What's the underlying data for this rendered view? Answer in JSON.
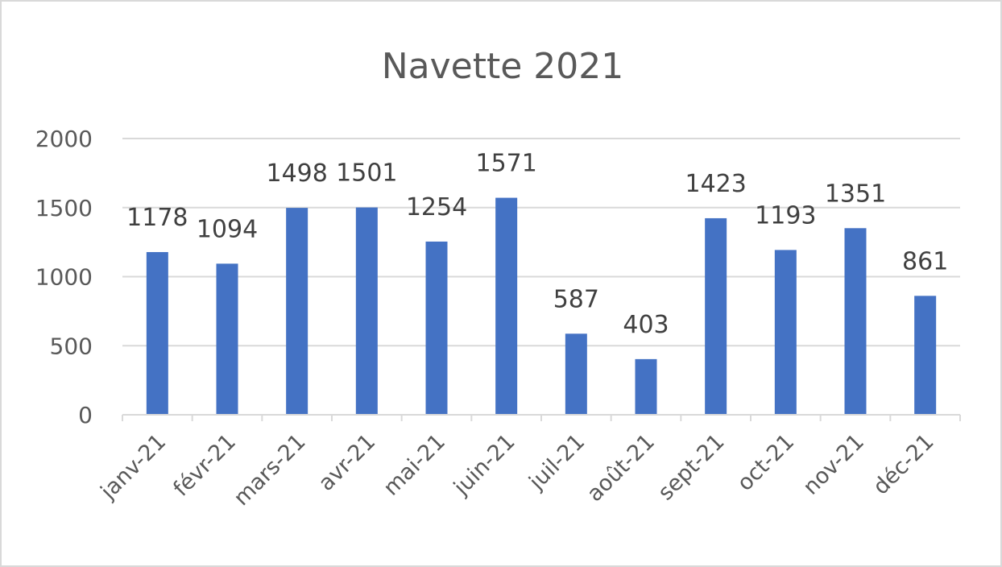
{
  "chart_data": {
    "type": "bar",
    "title": "Navette 2021",
    "categories": [
      "janv-21",
      "févr-21",
      "mars-21",
      "avr-21",
      "mai-21",
      "juin-21",
      "juil-21",
      "août-21",
      "sept-21",
      "oct-21",
      "nov-21",
      "déc-21"
    ],
    "values": [
      1178,
      1094,
      1498,
      1501,
      1254,
      1571,
      587,
      403,
      1423,
      1193,
      1351,
      861
    ],
    "ylim": [
      0,
      2000
    ],
    "yticks": [
      "0",
      "500",
      "1000",
      "1500",
      "2000"
    ],
    "grid": true,
    "legend": "none",
    "bar_color": "#4472c4",
    "data_labels": true
  }
}
